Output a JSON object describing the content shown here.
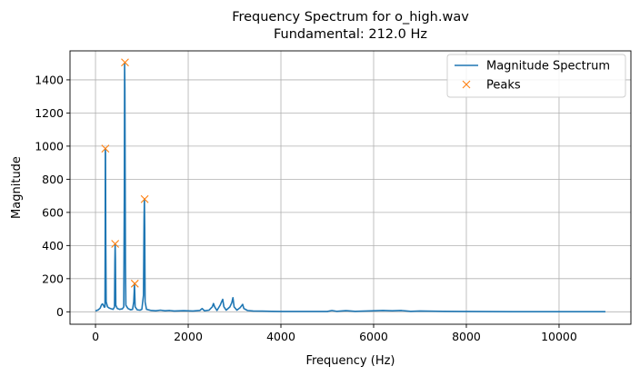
{
  "chart_data": {
    "type": "line",
    "title": "Frequency Spectrum for o_high.wav",
    "subtitle": "Fundamental: 212.0 Hz",
    "xlabel": "Frequency (Hz)",
    "ylabel": "Magnitude",
    "xlim": [
      -550,
      11550
    ],
    "ylim": [
      -75,
      1575
    ],
    "xticks": [
      0,
      2000,
      4000,
      6000,
      8000,
      10000
    ],
    "yticks": [
      0,
      200,
      400,
      600,
      800,
      1000,
      1200,
      1400
    ],
    "grid": true,
    "legend_position": "top-right",
    "series": [
      {
        "name": "Magnitude Spectrum",
        "color": "#1f77b4",
        "style": "line",
        "points": [
          [
            0,
            5
          ],
          [
            60,
            12
          ],
          [
            100,
            22
          ],
          [
            130,
            42
          ],
          [
            150,
            48
          ],
          [
            170,
            40
          ],
          [
            190,
            28
          ],
          [
            205,
            30
          ],
          [
            210,
            500
          ],
          [
            212,
            985
          ],
          [
            216,
            960
          ],
          [
            222,
            400
          ],
          [
            230,
            60
          ],
          [
            260,
            30
          ],
          [
            300,
            22
          ],
          [
            340,
            18
          ],
          [
            380,
            15
          ],
          [
            410,
            30
          ],
          [
            418,
            300
          ],
          [
            424,
            410
          ],
          [
            430,
            320
          ],
          [
            438,
            40
          ],
          [
            470,
            20
          ],
          [
            520,
            15
          ],
          [
            580,
            18
          ],
          [
            610,
            30
          ],
          [
            622,
            700
          ],
          [
            628,
            1500
          ],
          [
            634,
            1350
          ],
          [
            640,
            840
          ],
          [
            646,
            300
          ],
          [
            655,
            40
          ],
          [
            700,
            20
          ],
          [
            760,
            12
          ],
          [
            800,
            15
          ],
          [
            825,
            60
          ],
          [
            835,
            120
          ],
          [
            840,
            170
          ],
          [
            848,
            100
          ],
          [
            855,
            30
          ],
          [
            900,
            12
          ],
          [
            960,
            10
          ],
          [
            1000,
            15
          ],
          [
            1035,
            100
          ],
          [
            1048,
            560
          ],
          [
            1055,
            680
          ],
          [
            1062,
            500
          ],
          [
            1070,
            60
          ],
          [
            1100,
            15
          ],
          [
            1200,
            8
          ],
          [
            1300,
            6
          ],
          [
            1400,
            10
          ],
          [
            1500,
            6
          ],
          [
            1600,
            8
          ],
          [
            1700,
            5
          ],
          [
            1900,
            7
          ],
          [
            2100,
            5
          ],
          [
            2250,
            8
          ],
          [
            2300,
            20
          ],
          [
            2350,
            6
          ],
          [
            2450,
            10
          ],
          [
            2520,
            30
          ],
          [
            2545,
            50
          ],
          [
            2570,
            30
          ],
          [
            2620,
            8
          ],
          [
            2690,
            40
          ],
          [
            2720,
            60
          ],
          [
            2745,
            75
          ],
          [
            2770,
            30
          ],
          [
            2820,
            10
          ],
          [
            2900,
            30
          ],
          [
            2940,
            55
          ],
          [
            2965,
            85
          ],
          [
            2990,
            30
          ],
          [
            3050,
            10
          ],
          [
            3120,
            25
          ],
          [
            3175,
            45
          ],
          [
            3200,
            20
          ],
          [
            3280,
            8
          ],
          [
            3400,
            5
          ],
          [
            3600,
            4
          ],
          [
            3800,
            3
          ],
          [
            4000,
            2
          ],
          [
            4500,
            2
          ],
          [
            5000,
            2
          ],
          [
            5100,
            8
          ],
          [
            5200,
            3
          ],
          [
            5400,
            7
          ],
          [
            5600,
            3
          ],
          [
            6000,
            6
          ],
          [
            6200,
            8
          ],
          [
            6400,
            6
          ],
          [
            6600,
            8
          ],
          [
            6800,
            3
          ],
          [
            7000,
            5
          ],
          [
            7500,
            3
          ],
          [
            8000,
            2
          ],
          [
            9000,
            1
          ],
          [
            10000,
            1
          ],
          [
            11000,
            1
          ]
        ]
      },
      {
        "name": "Peaks",
        "color": "#ff7f0e",
        "style": "marker-x",
        "points": [
          [
            212,
            985
          ],
          [
            424,
            410
          ],
          [
            636,
            1505
          ],
          [
            848,
            170
          ],
          [
            1060,
            680
          ]
        ]
      }
    ]
  }
}
